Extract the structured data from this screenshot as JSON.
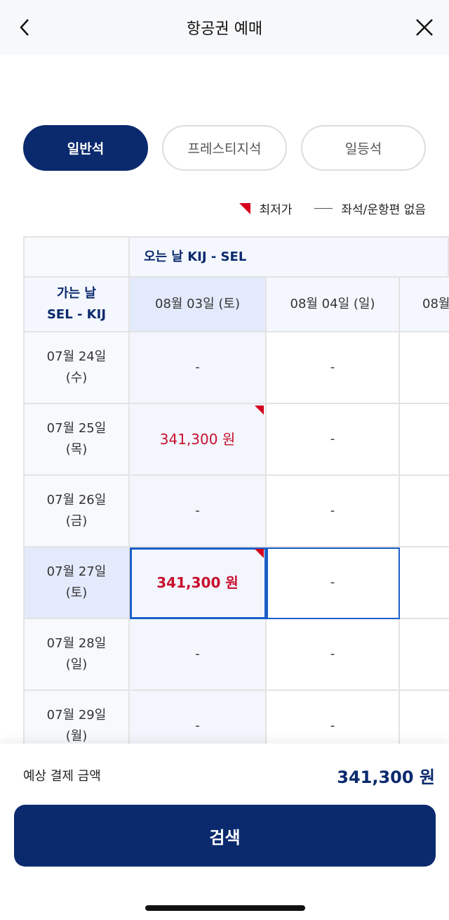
{
  "header": {
    "title": "항공권 예매",
    "back_icon": "chevron-left-icon",
    "close_icon": "close-icon"
  },
  "tabs": [
    {
      "label": "일반석",
      "active": true
    },
    {
      "label": "프레스티지석",
      "active": false
    },
    {
      "label": "일등석",
      "active": false
    }
  ],
  "legend": {
    "lowest": "최저가",
    "none": "좌석/운항편 없음"
  },
  "table": {
    "return_header": "오는 날 KIJ - SEL",
    "depart_header_line1": "가는 날",
    "depart_header_line2": "SEL - KIJ",
    "return_dates": [
      "08월 03일 (토)",
      "08월 04일 (일)",
      "08월"
    ],
    "rows": [
      {
        "date": "07월 24일",
        "day": "(수)",
        "cells": [
          "-",
          "-"
        ]
      },
      {
        "date": "07월 25일",
        "day": "(목)",
        "cells": [
          "341,300 원",
          "-"
        ]
      },
      {
        "date": "07월 26일",
        "day": "(금)",
        "cells": [
          "-",
          "-"
        ]
      },
      {
        "date": "07월 27일",
        "day": "(토)",
        "cells": [
          "341,300 원",
          "-"
        ]
      },
      {
        "date": "07월 28일",
        "day": "(일)",
        "cells": [
          "-",
          "-"
        ]
      },
      {
        "date": "07월 29일",
        "day": "(월)",
        "cells": [
          "-",
          "-"
        ]
      }
    ]
  },
  "footer": {
    "amount_label": "예상 결제 금액",
    "amount": "341,300 원",
    "search_label": "검색"
  },
  "colors": {
    "primary": "#0b2a6e",
    "price": "#c8102e",
    "selection": "#1a5fc8"
  }
}
